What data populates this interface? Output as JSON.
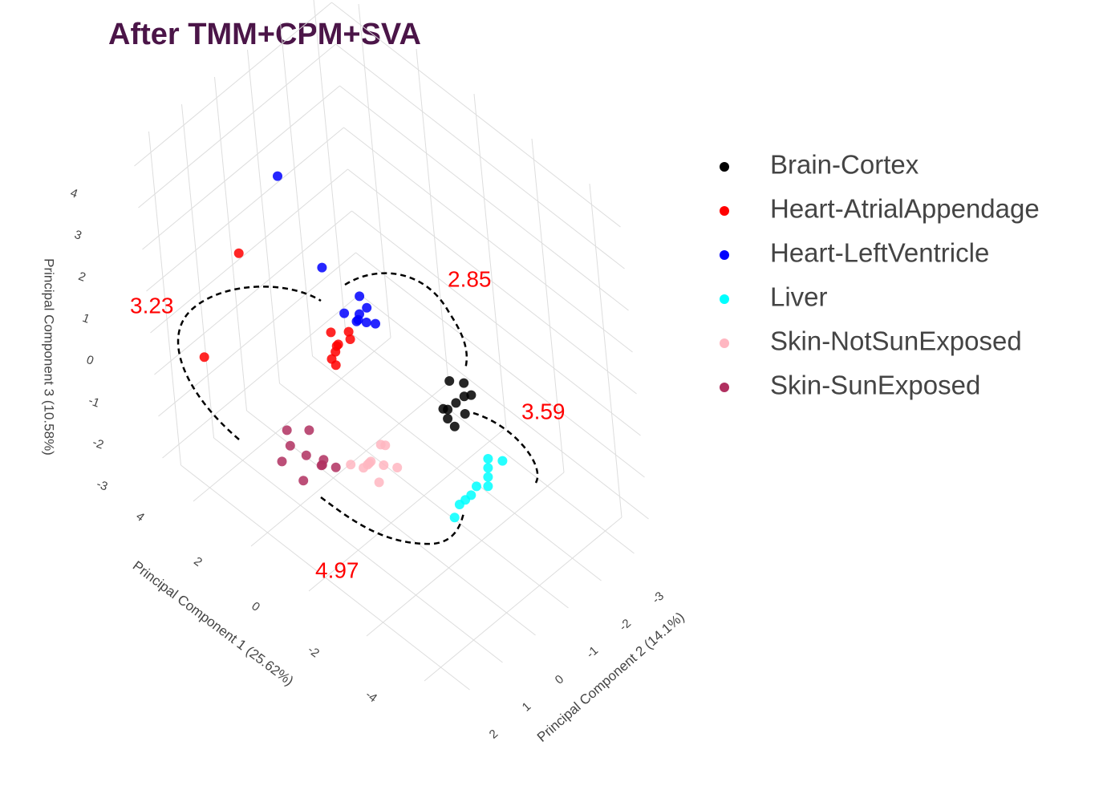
{
  "chart_data": {
    "type": "scatter3d",
    "title": "After TMM+CPM+SVA",
    "xlabel": "Principal Component 1 (25.62%)",
    "ylabel": "Principal Component 2 (14.1%)",
    "zlabel": "Principal Component 3 (10.58%)",
    "xlim": [
      -5,
      5
    ],
    "ylim": [
      -3.5,
      2.5
    ],
    "zlim": [
      -3.5,
      4.5
    ],
    "xticks": [
      -4,
      -2,
      0,
      2,
      4
    ],
    "yticks": [
      -3,
      -2,
      -1,
      0,
      1,
      2
    ],
    "zticks": [
      -3,
      -2,
      -1,
      0,
      1,
      2,
      3,
      4
    ],
    "grid": true,
    "legend": "right",
    "series": [
      {
        "name": "Brain-Cortex",
        "color": "#000000",
        "x": [
          -1,
          -1.2,
          -0.8,
          -1.1,
          -0.9,
          -1.3,
          -0.7,
          -1.0,
          -1.2,
          -0.9
        ],
        "y": [
          -1.4,
          -1.5,
          -1.3,
          -1.6,
          -1.2,
          -1.4,
          -1.5,
          -1.3,
          -1.7,
          -1.1
        ],
        "z": [
          -1,
          -0.8,
          -1.2,
          -0.6,
          -1.3,
          -1.1,
          -0.7,
          -1.5,
          -0.9,
          -1.0
        ]
      },
      {
        "name": "Heart-AtrialAppendage",
        "color": "#ff0000",
        "x": [
          1,
          0.8,
          1.2,
          0.9,
          1.1,
          0.7,
          1.3,
          1.0,
          4,
          3
        ],
        "y": [
          0.3,
          0.5,
          0.1,
          0,
          0.4,
          0.6,
          0.2,
          -0.1,
          1.8,
          1.3
        ],
        "z": [
          0.4,
          0.5,
          0.2,
          0.6,
          0.1,
          0.3,
          0.5,
          0.3,
          -0.5,
          2.2
        ]
      },
      {
        "name": "Heart-LeftVentricle",
        "color": "#0000ff",
        "x": [
          0.5,
          0.3,
          0.7,
          0.4,
          0.6,
          0.2,
          0.8,
          0.5,
          1.4,
          3.0
        ],
        "y": [
          0,
          0.2,
          -0.2,
          -0.4,
          0.3,
          0,
          -0.5,
          -0.1,
          0.2,
          0
        ],
        "z": [
          1.1,
          1.3,
          1.0,
          0.8,
          1.4,
          1.2,
          0.9,
          1.6,
          2.0,
          3.2
        ]
      },
      {
        "name": "Liver",
        "color": "#00ffff",
        "x": [
          -2,
          -2.2,
          -1.8,
          -2.1,
          -1.9,
          -2.3,
          -1.7,
          -2.0,
          -2.4,
          -1.6
        ],
        "y": [
          -1,
          -1.2,
          -0.8,
          -1.3,
          -0.9,
          -1.1,
          -0.7,
          -1.4,
          -1.5,
          -0.6
        ],
        "z": [
          -2.2,
          -2.0,
          -2.5,
          -1.9,
          -2.4,
          -2.1,
          -2.6,
          -1.8,
          -1.7,
          -2.9
        ]
      },
      {
        "name": "Skin-NotSunExposed",
        "color": "#ffb6c1",
        "x": [
          1,
          0.8,
          1.2,
          0.6,
          1.1,
          0.9,
          1.3,
          0.7,
          1.0,
          0.5
        ],
        "y": [
          -0.3,
          -0.1,
          -0.5,
          -0.4,
          -0.2,
          -0.6,
          0,
          -0.3,
          -0.8,
          -0.7
        ],
        "z": [
          -2.8,
          -2.6,
          -3.0,
          -2.7,
          -2.9,
          -2.5,
          -2.8,
          -3.1,
          -2.7,
          -2.9
        ]
      },
      {
        "name": "Skin-SunExposed",
        "color": "#b03060",
        "x": [
          2,
          2.3,
          1.7,
          2.2,
          1.8,
          2.5,
          1.5,
          2.0,
          2.4,
          1.6
        ],
        "y": [
          0.7,
          0.9,
          0.5,
          0.4,
          1.0,
          0.8,
          0.6,
          0.3,
          1.1,
          0.2
        ],
        "z": [
          -2.5,
          -2.3,
          -2.7,
          -2.2,
          -2.8,
          -2.1,
          -2.4,
          -3.0,
          -2.6,
          -2.9
        ]
      }
    ],
    "annotations": [
      {
        "text": "3.23"
      },
      {
        "text": "2.85"
      },
      {
        "text": "3.59"
      },
      {
        "text": "4.97"
      }
    ]
  }
}
